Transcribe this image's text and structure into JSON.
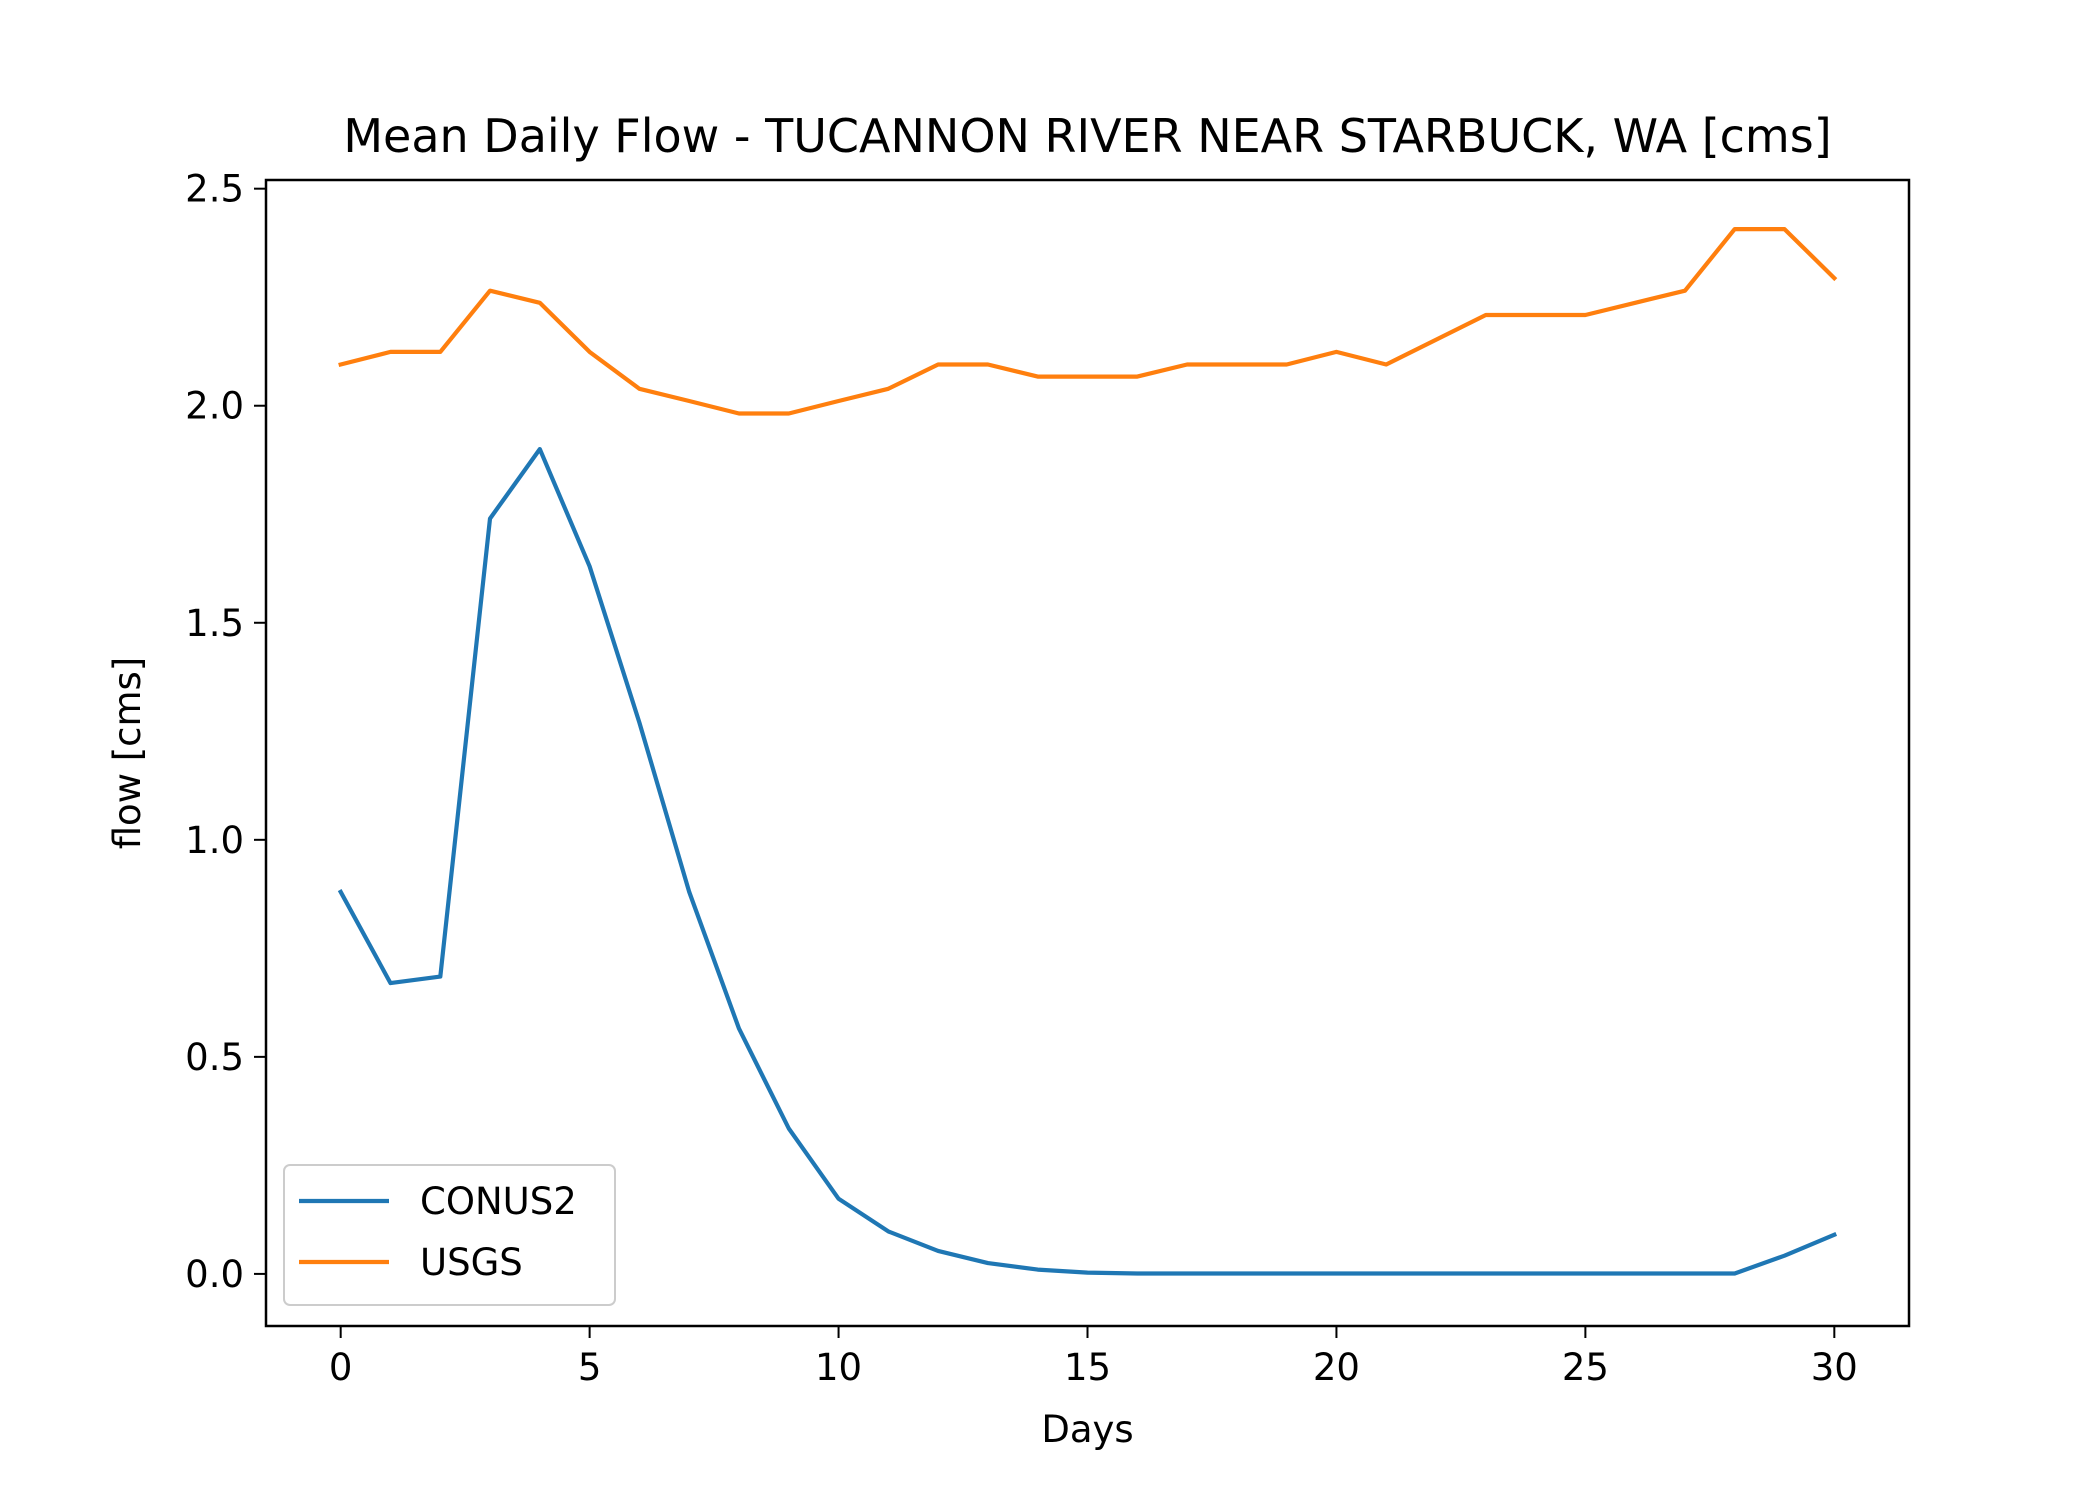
{
  "chart_data": {
    "type": "line",
    "title": "Mean Daily Flow - TUCANNON RIVER NEAR STARBUCK, WA [cms]",
    "xlabel": "Days",
    "ylabel": "flow [cms]",
    "xlim": [
      -1.5,
      31.5
    ],
    "ylim": [
      -0.12,
      2.52
    ],
    "xticks": [
      0,
      5,
      10,
      15,
      20,
      25,
      30
    ],
    "yticks": [
      0.0,
      0.5,
      1.0,
      1.5,
      2.0,
      2.5
    ],
    "xtick_labels": [
      "0",
      "5",
      "10",
      "15",
      "20",
      "25",
      "30"
    ],
    "ytick_labels": [
      "0.0",
      "0.5",
      "1.0",
      "1.5",
      "2.0",
      "2.5"
    ],
    "grid": false,
    "legend": "lower-left",
    "x": [
      0,
      1,
      2,
      3,
      4,
      5,
      6,
      7,
      8,
      9,
      10,
      11,
      12,
      13,
      14,
      15,
      16,
      17,
      18,
      19,
      20,
      21,
      22,
      23,
      24,
      25,
      26,
      27,
      28,
      29,
      30
    ],
    "series": [
      {
        "name": "CONUS2",
        "color": "#1f77b4",
        "values": [
          0.88,
          0.67,
          0.685,
          1.74,
          1.9,
          1.63,
          1.27,
          0.88,
          0.565,
          0.335,
          0.173,
          0.098,
          0.053,
          0.025,
          0.01,
          0.003,
          0.001,
          0.001,
          0.001,
          0.001,
          0.001,
          0.001,
          0.001,
          0.001,
          0.001,
          0.001,
          0.001,
          0.001,
          0.001,
          0.042,
          0.09
        ]
      },
      {
        "name": "USGS",
        "color": "#ff7f0e",
        "values": [
          2.095,
          2.124,
          2.124,
          2.265,
          2.237,
          2.124,
          2.039,
          2.011,
          1.982,
          1.982,
          2.011,
          2.039,
          2.095,
          2.095,
          2.067,
          2.067,
          2.067,
          2.095,
          2.095,
          2.095,
          2.124,
          2.095,
          2.152,
          2.209,
          2.209,
          2.209,
          2.237,
          2.265,
          2.407,
          2.407,
          2.294
        ]
      }
    ]
  }
}
